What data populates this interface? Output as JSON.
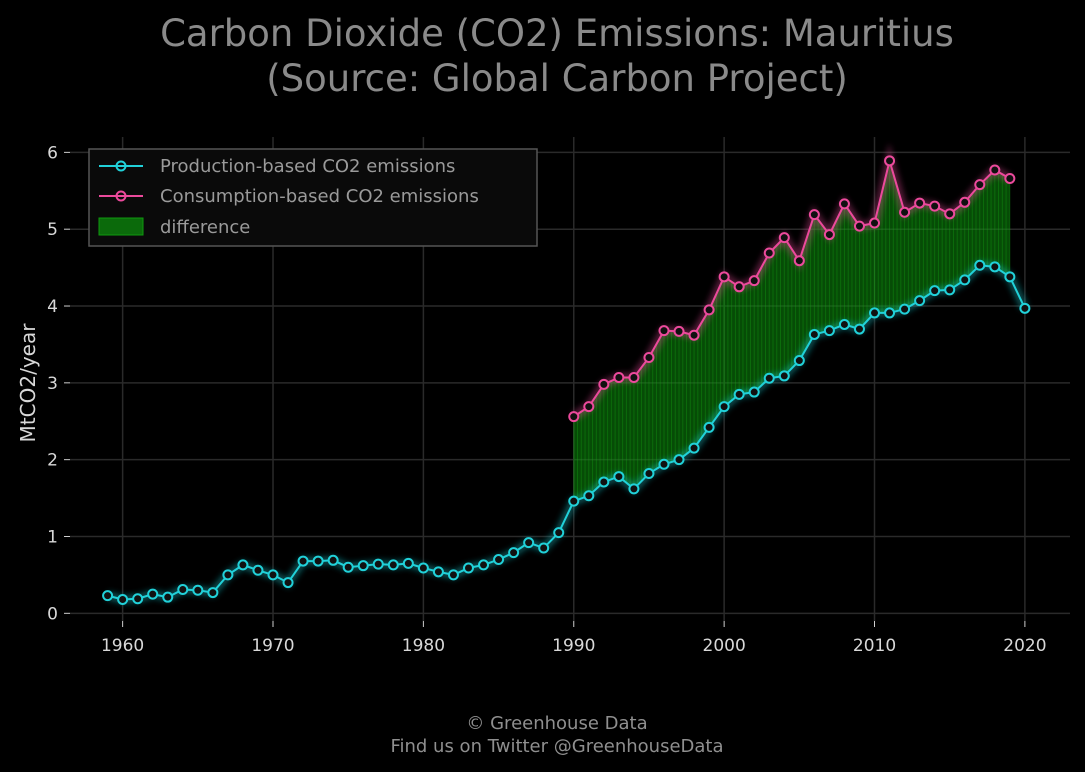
{
  "chart_data": {
    "type": "line",
    "title": [
      "Carbon Dioxide (CO2) Emissions: Mauritius",
      "(Source: Global Carbon Project)"
    ],
    "xlabel": "",
    "ylabel": "MtCO2/year",
    "xlim": [
      1956.5,
      2023
    ],
    "ylim": [
      -0.1,
      6.2
    ],
    "x_ticks": [
      1960,
      1970,
      1980,
      1990,
      2000,
      2010,
      2020
    ],
    "y_ticks": [
      0,
      1,
      2,
      3,
      4,
      5,
      6
    ],
    "grid": true,
    "legend_position": "top-left",
    "series": [
      {
        "name": "Production-based CO2 emissions",
        "color": "#21d1d9",
        "x": [
          1959,
          1960,
          1961,
          1962,
          1963,
          1964,
          1965,
          1966,
          1967,
          1968,
          1969,
          1970,
          1971,
          1972,
          1973,
          1974,
          1975,
          1976,
          1977,
          1978,
          1979,
          1980,
          1981,
          1982,
          1983,
          1984,
          1985,
          1986,
          1987,
          1988,
          1989,
          1990,
          1991,
          1992,
          1993,
          1994,
          1995,
          1996,
          1997,
          1998,
          1999,
          2000,
          2001,
          2002,
          2003,
          2004,
          2005,
          2006,
          2007,
          2008,
          2009,
          2010,
          2011,
          2012,
          2013,
          2014,
          2015,
          2016,
          2017,
          2018,
          2019,
          2020
        ],
        "values": [
          0.23,
          0.18,
          0.19,
          0.25,
          0.21,
          0.31,
          0.3,
          0.27,
          0.5,
          0.63,
          0.56,
          0.5,
          0.4,
          0.68,
          0.68,
          0.69,
          0.6,
          0.62,
          0.64,
          0.63,
          0.65,
          0.59,
          0.54,
          0.5,
          0.59,
          0.63,
          0.7,
          0.79,
          0.92,
          0.85,
          1.05,
          1.46,
          1.53,
          1.71,
          1.78,
          1.62,
          1.82,
          1.94,
          2.0,
          2.15,
          2.42,
          2.69,
          2.85,
          2.88,
          3.06,
          3.09,
          3.29,
          3.63,
          3.68,
          3.76,
          3.7,
          3.91,
          3.91,
          3.96,
          4.07,
          4.2,
          4.21,
          4.34,
          4.53,
          4.51,
          4.38,
          3.97
        ]
      },
      {
        "name": "Consumption-based CO2 emissions",
        "color": "#ec4a9c",
        "x": [
          1990,
          1991,
          1992,
          1993,
          1994,
          1995,
          1996,
          1997,
          1998,
          1999,
          2000,
          2001,
          2002,
          2003,
          2004,
          2005,
          2006,
          2007,
          2008,
          2009,
          2010,
          2011,
          2012,
          2013,
          2014,
          2015,
          2016,
          2017,
          2018,
          2019
        ],
        "values": [
          2.56,
          2.69,
          2.98,
          3.07,
          3.07,
          3.33,
          3.68,
          3.67,
          3.62,
          3.95,
          4.38,
          4.25,
          4.33,
          4.69,
          4.89,
          4.59,
          5.19,
          4.93,
          5.33,
          5.04,
          5.08,
          5.89,
          5.22,
          5.34,
          5.3,
          5.2,
          5.35,
          5.58,
          5.77,
          5.66
        ]
      }
    ],
    "fill_between": {
      "name": "difference",
      "color": "#0b8a0b",
      "x_range": [
        1990,
        2019
      ]
    }
  },
  "footer": {
    "line1": "© Greenhouse Data",
    "line2": "Find us on Twitter @GreenhouseData"
  }
}
